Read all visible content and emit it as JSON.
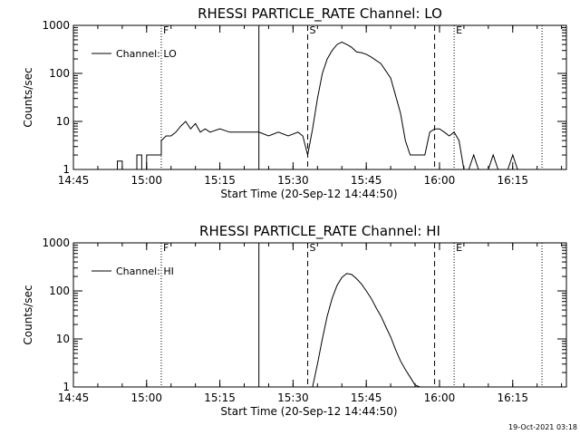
{
  "footer": {
    "timestamp": "19-Oct-2021 03:18"
  },
  "chart_data": [
    {
      "type": "line",
      "title": "RHESSI PARTICLE_RATE Channel: LO",
      "xlabel": "Start Time (20-Sep-12 14:44:50)",
      "ylabel": "Counts/sec",
      "yscale": "log",
      "xlim": [
        "14:45",
        "16:26"
      ],
      "ylim": [
        1,
        1000
      ],
      "x_ticks": [
        "14:45",
        "15:00",
        "15:15",
        "15:30",
        "15:45",
        "16:00",
        "16:15"
      ],
      "y_ticks": [
        "1",
        "10",
        "100",
        "1000"
      ],
      "legend": {
        "position": "top-left",
        "entries": [
          "Channel: LO"
        ]
      },
      "markers": [
        {
          "time": "15:03",
          "style": "dotted",
          "label": "F"
        },
        {
          "time": "15:23",
          "style": "solid",
          "label": ""
        },
        {
          "time": "15:33",
          "style": "dashed",
          "label": "S"
        },
        {
          "time": "15:59",
          "style": "dashed",
          "label": ""
        },
        {
          "time": "16:03",
          "style": "dotted",
          "label": "E"
        },
        {
          "time": "16:21",
          "style": "dotted",
          "label": ""
        }
      ],
      "series": [
        {
          "name": "Channel: LO",
          "x": [
            "14:54",
            "14:54",
            "14:55",
            "14:55",
            "14:58",
            "14:58",
            "14:59",
            "14:59",
            "15:00",
            "15:00",
            "15:01",
            "15:01",
            "15:02",
            "15:02",
            "15:03",
            "15:03",
            "15:04",
            "15:05",
            "15:06",
            "15:07",
            "15:08",
            "15:09",
            "15:10",
            "15:11",
            "15:12",
            "15:13",
            "15:15",
            "15:17",
            "15:19",
            "15:21",
            "15:23",
            "15:25",
            "15:27",
            "15:29",
            "15:31",
            "15:32",
            "15:33",
            "15:34",
            "15:35",
            "15:36",
            "15:37",
            "15:38",
            "15:39",
            "15:40",
            "15:41",
            "15:42",
            "15:43",
            "15:44",
            "15:45",
            "15:46",
            "15:48",
            "15:50",
            "15:52",
            "15:53",
            "15:54",
            "15:55",
            "15:56",
            "15:57",
            "15:58",
            "15:59",
            "16:00",
            "16:01",
            "16:02",
            "16:03",
            "16:04",
            "16:05",
            "16:06",
            "16:07",
            "16:08",
            "16:09",
            "16:10",
            "16:11",
            "16:12",
            "16:13",
            "16:14",
            "16:15",
            "16:16",
            "16:17",
            "16:18",
            "16:19"
          ],
          "y": [
            1,
            1.5,
            1.5,
            1,
            1,
            2,
            2,
            1,
            1,
            2,
            2,
            2,
            2,
            2,
            2,
            4,
            5,
            5,
            6,
            8,
            10,
            7,
            9,
            6,
            7,
            6,
            7,
            6,
            6,
            6,
            6,
            5,
            6,
            5,
            6,
            5,
            2,
            7,
            30,
            100,
            200,
            300,
            400,
            450,
            400,
            350,
            280,
            270,
            250,
            220,
            160,
            80,
            15,
            4,
            2,
            2,
            2,
            2,
            6,
            7,
            7,
            6,
            5,
            6,
            4,
            1,
            1,
            2,
            1,
            1,
            1,
            2,
            1,
            1,
            1,
            2,
            1,
            1,
            1,
            1
          ]
        }
      ]
    },
    {
      "type": "line",
      "title": "RHESSI PARTICLE_RATE Channel: HI",
      "xlabel": "Start Time (20-Sep-12 14:44:50)",
      "ylabel": "Counts/sec",
      "yscale": "log",
      "xlim": [
        "14:45",
        "16:26"
      ],
      "ylim": [
        1,
        1000
      ],
      "x_ticks": [
        "14:45",
        "15:00",
        "15:15",
        "15:30",
        "15:45",
        "16:00",
        "16:15"
      ],
      "y_ticks": [
        "1",
        "10",
        "100",
        "1000"
      ],
      "legend": {
        "position": "top-left",
        "entries": [
          "Channel: HI"
        ]
      },
      "markers": [
        {
          "time": "15:03",
          "style": "dotted",
          "label": "F"
        },
        {
          "time": "15:23",
          "style": "solid",
          "label": ""
        },
        {
          "time": "15:33",
          "style": "dashed",
          "label": "S"
        },
        {
          "time": "15:59",
          "style": "dashed",
          "label": ""
        },
        {
          "time": "16:03",
          "style": "dotted",
          "label": "E"
        },
        {
          "time": "16:21",
          "style": "dotted",
          "label": ""
        }
      ],
      "series": [
        {
          "name": "Channel: HI",
          "x": [
            "15:34",
            "15:35",
            "15:36",
            "15:37",
            "15:38",
            "15:39",
            "15:40",
            "15:41",
            "15:42",
            "15:43",
            "15:44",
            "15:45",
            "15:46",
            "15:47",
            "15:48",
            "15:49",
            "15:50",
            "15:51",
            "15:52",
            "15:53",
            "15:54",
            "15:55",
            "15:56"
          ],
          "y": [
            1,
            3,
            10,
            30,
            70,
            130,
            190,
            230,
            220,
            180,
            140,
            100,
            70,
            45,
            30,
            18,
            11,
            6,
            3.5,
            2.3,
            1.6,
            1.1,
            1
          ]
        }
      ]
    }
  ]
}
